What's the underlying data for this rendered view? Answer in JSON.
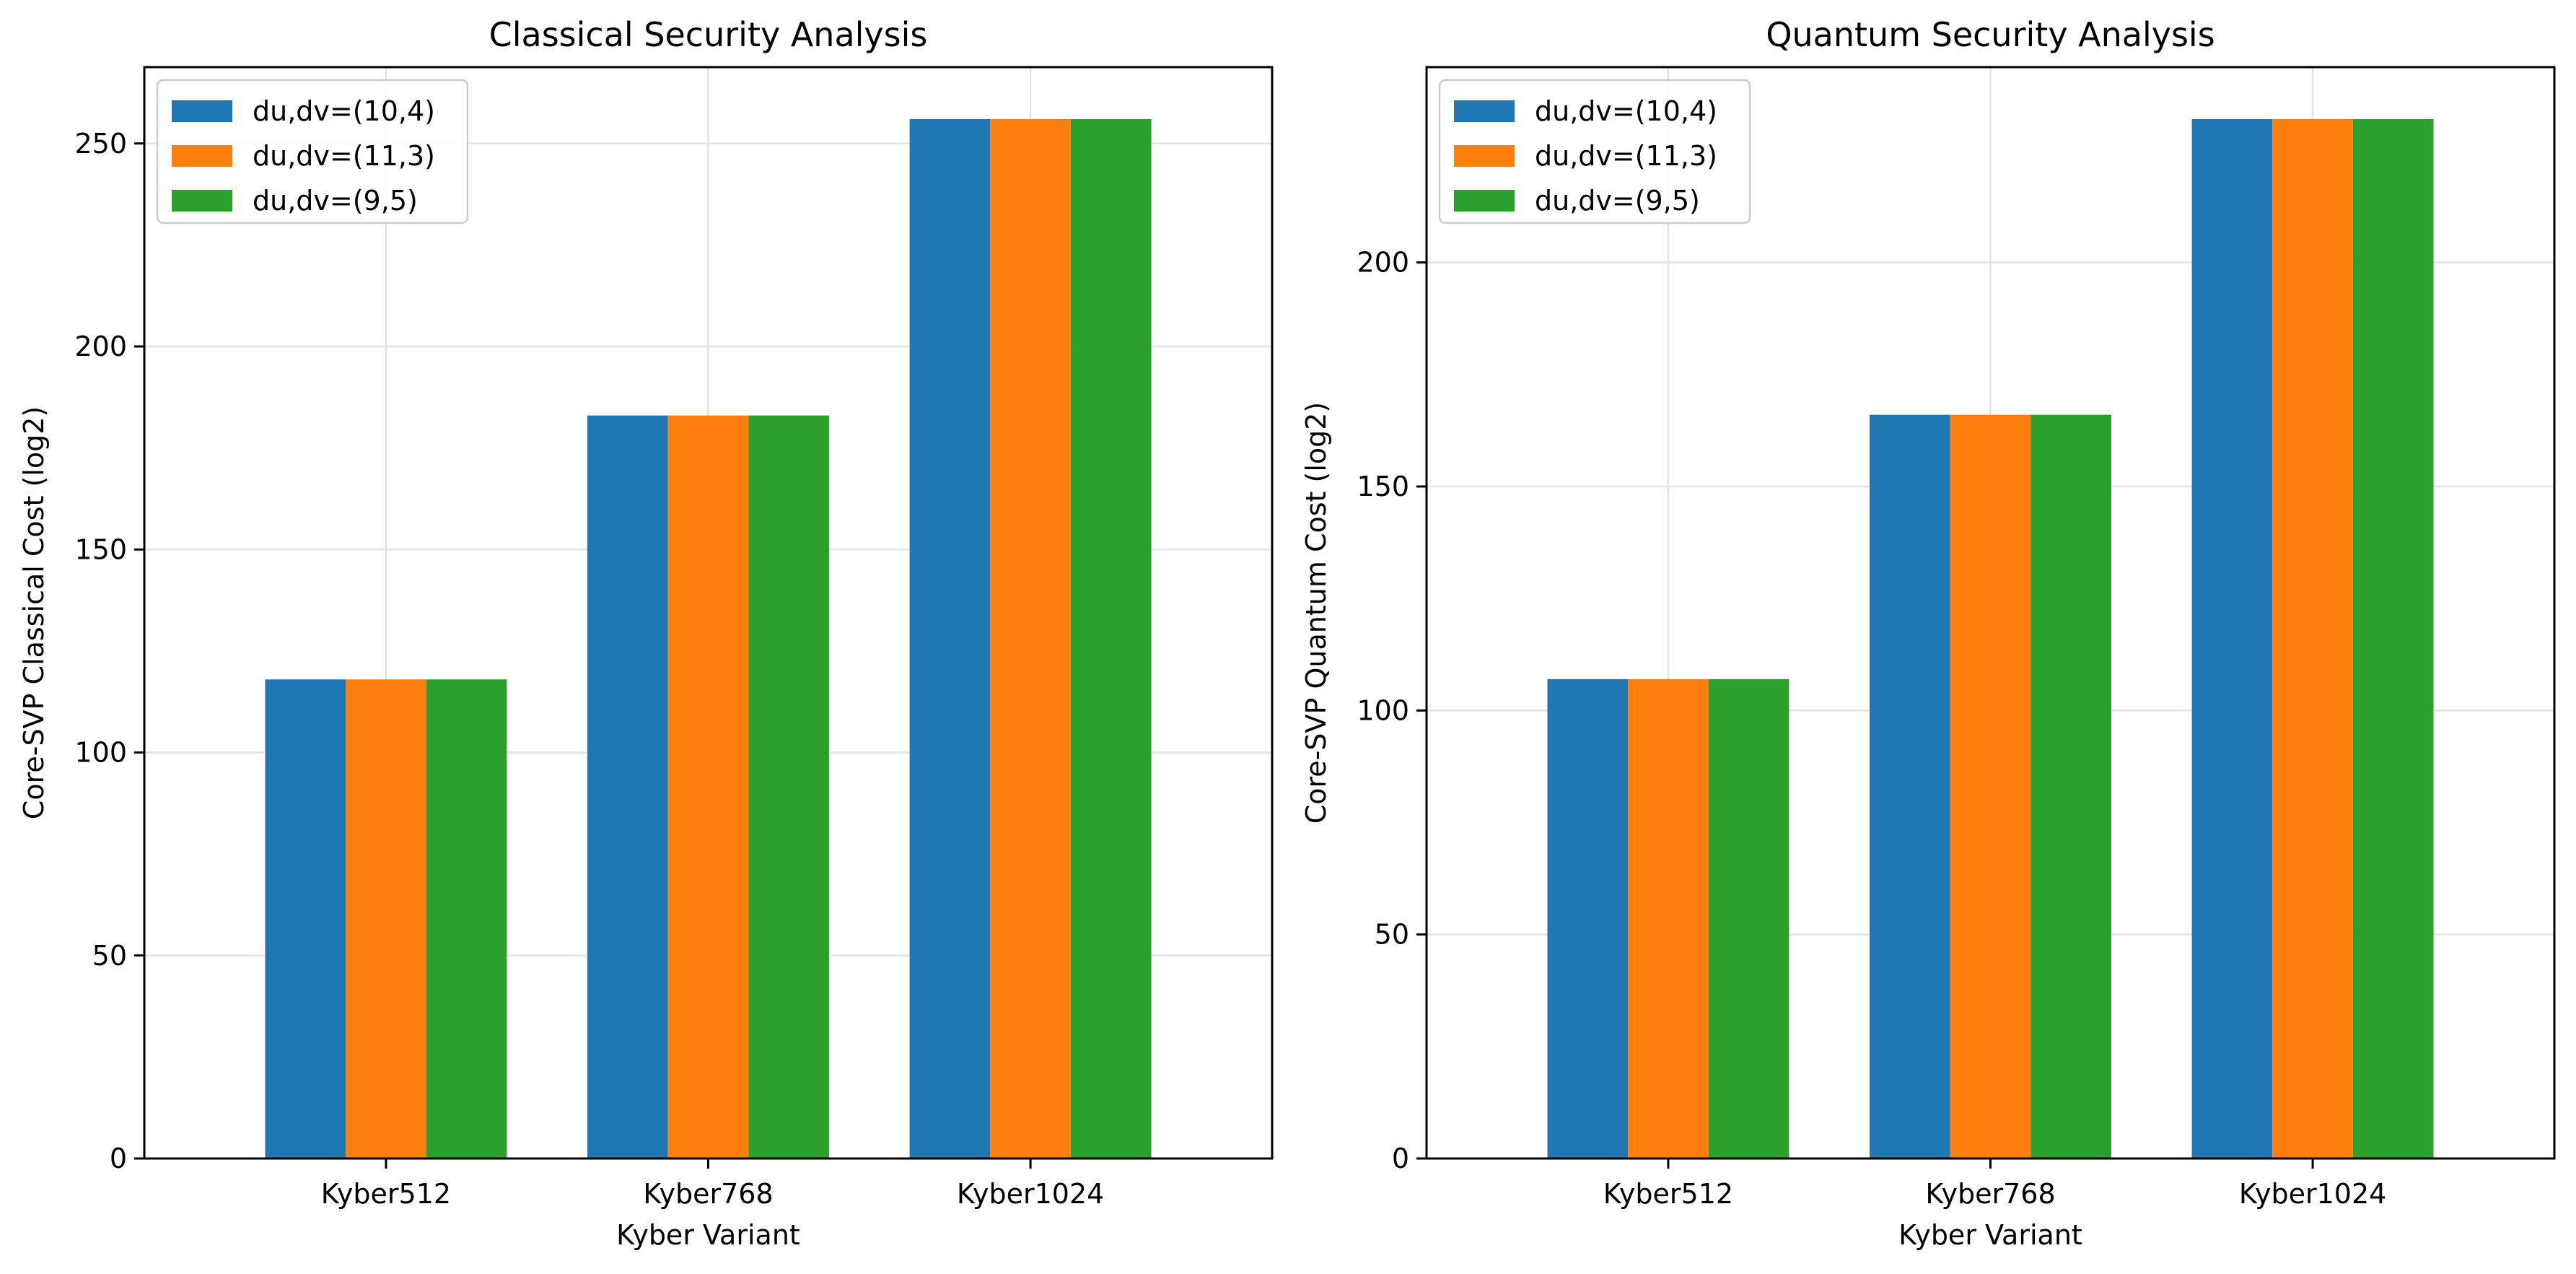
{
  "chart_data": [
    {
      "type": "bar",
      "title": "Classical Security Analysis",
      "xlabel": "Kyber Variant",
      "ylabel": "Core-SVP Classical Cost (log2)",
      "categories": [
        "Kyber512",
        "Kyber768",
        "Kyber1024"
      ],
      "series": [
        {
          "name": "du,dv=(10,4)",
          "color": "#1f77b4",
          "values": [
            118,
            183,
            256
          ]
        },
        {
          "name": "du,dv=(11,3)",
          "color": "#ff7f0e",
          "values": [
            118,
            183,
            256
          ]
        },
        {
          "name": "du,dv=(9,5)",
          "color": "#2ca02c",
          "values": [
            118,
            183,
            256
          ]
        }
      ],
      "ylim": [
        0,
        268.8
      ],
      "yticks": [
        0,
        50,
        100,
        150,
        200,
        250
      ],
      "grid": true,
      "legend": "top-left"
    },
    {
      "type": "bar",
      "title": "Quantum Security Analysis",
      "xlabel": "Kyber Variant",
      "ylabel": "Core-SVP Quantum Cost (log2)",
      "categories": [
        "Kyber512",
        "Kyber768",
        "Kyber1024"
      ],
      "series": [
        {
          "name": "du,dv=(10,4)",
          "color": "#1f77b4",
          "values": [
            107,
            166,
            232
          ]
        },
        {
          "name": "du,dv=(11,3)",
          "color": "#ff7f0e",
          "values": [
            107,
            166,
            232
          ]
        },
        {
          "name": "du,dv=(9,5)",
          "color": "#2ca02c",
          "values": [
            107,
            166,
            232
          ]
        }
      ],
      "ylim": [
        0,
        243.6
      ],
      "yticks": [
        0,
        50,
        100,
        150,
        200
      ],
      "grid": true,
      "legend": "top-left"
    }
  ]
}
